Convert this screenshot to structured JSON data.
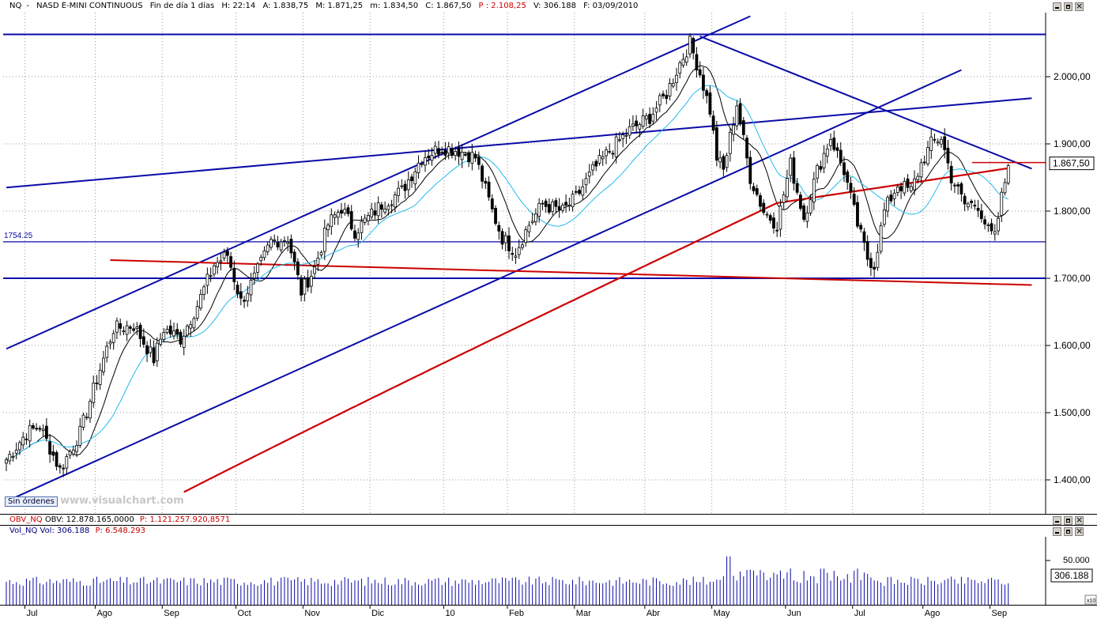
{
  "header": {
    "symbol": "NQ",
    "name": "NASD E-MINI CONTINUOUS",
    "timeframe": "Fin de día 1 días",
    "time": "H: 22:14",
    "open": "A: 1.838,75",
    "high": "M: 1.871,25",
    "low": "m: 1.834,50",
    "close": "C: 1.867,50",
    "p": "P : 2.108,25",
    "volume": "V: 306.188",
    "date": "F: 03/09/2010"
  },
  "obv_panel": {
    "name": "OBV_NQ",
    "value": "OBV: 12.878.165,0000",
    "p": "P: 1.121.257.920,8571"
  },
  "vol_panel": {
    "name": "Vol_NQ",
    "value": "Vol: 306.188",
    "p": "P: 6.548.293",
    "axis_label": "50.000",
    "last_label": "306.188",
    "scale_badge": "x10"
  },
  "badges": {
    "orders": "Sin órdenes",
    "watermark": "www.visualchart.com"
  },
  "colors": {
    "blue_line": "#0a0aa8",
    "red_ma": "#cc0000",
    "cyan_ma": "#22bbee",
    "black_ma": "#000000",
    "candle": "#000000"
  },
  "chart_data": {
    "type": "candlestick",
    "ylim": [
      1350,
      2090
    ],
    "y_ticks": [
      "1.400,00",
      "1.500,00",
      "1.600,00",
      "1.700,00",
      "1.800,00",
      "1.900,00",
      "2.000,00"
    ],
    "y_tick_values": [
      1400,
      1500,
      1600,
      1700,
      1800,
      1900,
      2000
    ],
    "last_price_label": "1.867,50",
    "last_price": 1867.5,
    "months": [
      "Jul",
      "Ago",
      "Sep",
      "Oct",
      "Nov",
      "Dic",
      "10",
      "Feb",
      "Mar",
      "Abr",
      "May",
      "Jun",
      "Jul",
      "Ago",
      "Sep"
    ],
    "month_bar_index": [
      6,
      27,
      47,
      69,
      89,
      109,
      131,
      150,
      170,
      191,
      211,
      233,
      253,
      274,
      294
    ],
    "bar_count": 300,
    "key_closes": [
      [
        0,
        1430
      ],
      [
        6,
        1470
      ],
      [
        10,
        1480
      ],
      [
        16,
        1415
      ],
      [
        22,
        1470
      ],
      [
        27,
        1550
      ],
      [
        32,
        1625
      ],
      [
        38,
        1630
      ],
      [
        44,
        1580
      ],
      [
        47,
        1625
      ],
      [
        52,
        1610
      ],
      [
        57,
        1660
      ],
      [
        62,
        1720
      ],
      [
        66,
        1735
      ],
      [
        70,
        1665
      ],
      [
        74,
        1700
      ],
      [
        79,
        1755
      ],
      [
        84,
        1760
      ],
      [
        88,
        1680
      ],
      [
        92,
        1715
      ],
      [
        96,
        1780
      ],
      [
        100,
        1805
      ],
      [
        104,
        1770
      ],
      [
        108,
        1790
      ],
      [
        112,
        1810
      ],
      [
        118,
        1830
      ],
      [
        124,
        1880
      ],
      [
        130,
        1895
      ],
      [
        135,
        1890
      ],
      [
        140,
        1880
      ],
      [
        145,
        1800
      ],
      [
        148,
        1760
      ],
      [
        152,
        1740
      ],
      [
        156,
        1780
      ],
      [
        160,
        1810
      ],
      [
        166,
        1800
      ],
      [
        170,
        1820
      ],
      [
        175,
        1860
      ],
      [
        180,
        1890
      ],
      [
        186,
        1920
      ],
      [
        192,
        1940
      ],
      [
        197,
        1975
      ],
      [
        201,
        2020
      ],
      [
        204,
        2050
      ],
      [
        207,
        2005
      ],
      [
        210,
        1950
      ],
      [
        212,
        1880
      ],
      [
        214,
        1860
      ],
      [
        218,
        1960
      ],
      [
        222,
        1850
      ],
      [
        226,
        1800
      ],
      [
        230,
        1780
      ],
      [
        234,
        1870
      ],
      [
        238,
        1790
      ],
      [
        242,
        1860
      ],
      [
        246,
        1910
      ],
      [
        250,
        1860
      ],
      [
        254,
        1780
      ],
      [
        257,
        1730
      ],
      [
        259,
        1720
      ],
      [
        262,
        1800
      ],
      [
        266,
        1840
      ],
      [
        270,
        1830
      ],
      [
        273,
        1870
      ],
      [
        276,
        1900
      ],
      [
        279,
        1910
      ],
      [
        282,
        1850
      ],
      [
        286,
        1810
      ],
      [
        290,
        1810
      ],
      [
        293,
        1770
      ],
      [
        295,
        1760
      ],
      [
        297,
        1820
      ],
      [
        299,
        1867.5
      ]
    ],
    "horizontal_lines": [
      {
        "value": 2063
      },
      {
        "value": 1754.25,
        "label": "1754.25"
      },
      {
        "value": 1700
      }
    ],
    "trendlines": [
      {
        "from": [
          0,
          1595
        ],
        "to": [
          222,
          2090
        ]
      },
      {
        "from": [
          0,
          1368
        ],
        "to": [
          285,
          2010
        ]
      },
      {
        "from": [
          0,
          1835
        ],
        "to": [
          306,
          1968
        ]
      },
      {
        "from": [
          207,
          2060
        ],
        "to": [
          306,
          1863
        ]
      },
      {
        "from": [
          31,
          1727
        ],
        "to": [
          306,
          1690
        ]
      }
    ],
    "moving_averages": [
      {
        "period": 10,
        "color": "#000000"
      },
      {
        "period": 20,
        "color": "#22bbee"
      },
      {
        "period": 200,
        "color": "#cc0000"
      }
    ]
  }
}
